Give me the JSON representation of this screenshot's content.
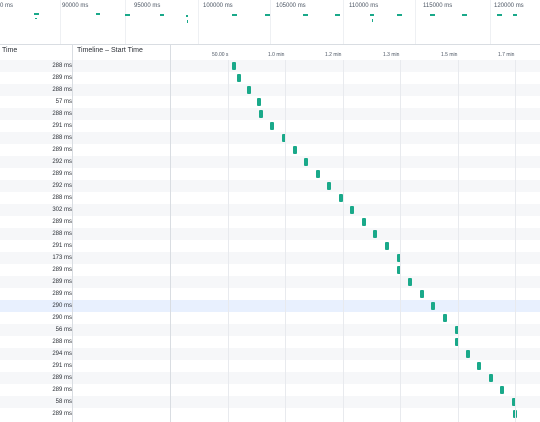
{
  "overview": {
    "labels": [
      "0 ms",
      "90000 ms",
      "95000 ms",
      "100000 ms",
      "105000 ms",
      "110000 ms",
      "115000 ms",
      "120000 ms"
    ],
    "mark_color": "#1aa98a"
  },
  "columns": {
    "time": "Time",
    "timeline": "Timeline – Start Time"
  },
  "timeline_ticks": [
    "50.00 s",
    "1.0 min",
    "1.2 min",
    "1.3 min",
    "1.5 min",
    "1.7 min"
  ],
  "rows": [
    {
      "time": "288 ms"
    },
    {
      "time": "289 ms"
    },
    {
      "time": "288 ms"
    },
    {
      "time": "57 ms"
    },
    {
      "time": "288 ms"
    },
    {
      "time": "291 ms"
    },
    {
      "time": "288 ms"
    },
    {
      "time": "289 ms"
    },
    {
      "time": "292 ms"
    },
    {
      "time": "289 ms"
    },
    {
      "time": "292 ms"
    },
    {
      "time": "288 ms"
    },
    {
      "time": "302 ms"
    },
    {
      "time": "289 ms"
    },
    {
      "time": "288 ms"
    },
    {
      "time": "291 ms"
    },
    {
      "time": "173 ms"
    },
    {
      "time": "289 ms"
    },
    {
      "time": "289 ms"
    },
    {
      "time": "289 ms"
    },
    {
      "time": "290 ms"
    },
    {
      "time": "290 ms"
    },
    {
      "time": "56 ms"
    },
    {
      "time": "288 ms"
    },
    {
      "time": "294 ms"
    },
    {
      "time": "291 ms"
    },
    {
      "time": "289 ms"
    },
    {
      "time": "289 ms"
    },
    {
      "time": "58 ms"
    },
    {
      "time": "289 ms"
    }
  ],
  "highlighted_row": 20,
  "bar_color": "#1aa98a"
}
